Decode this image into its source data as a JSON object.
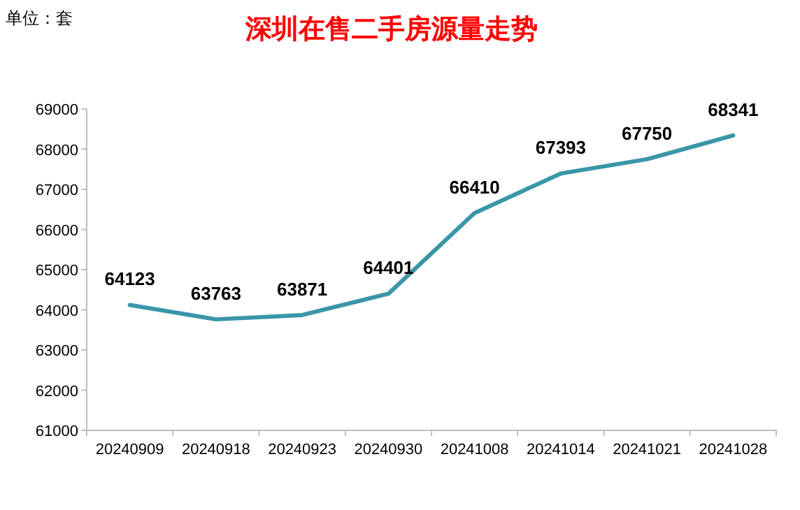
{
  "chart_data": {
    "type": "line",
    "title": "深圳在售二手房源量走势",
    "annotations": [
      "单位：套"
    ],
    "categories": [
      "20240909",
      "20240918",
      "20240923",
      "20240930",
      "20241008",
      "20241014",
      "20241021",
      "20241028"
    ],
    "series": [
      {
        "color": "#3a96a8",
        "values": [
          64123,
          63763,
          63871,
          64401,
          66410,
          67393,
          67750,
          68341
        ]
      }
    ],
    "ylim": [
      61000,
      69000
    ],
    "yticks": [
      61000,
      62000,
      63000,
      64000,
      65000,
      66000,
      67000,
      68000,
      69000
    ],
    "data_labels": true
  }
}
